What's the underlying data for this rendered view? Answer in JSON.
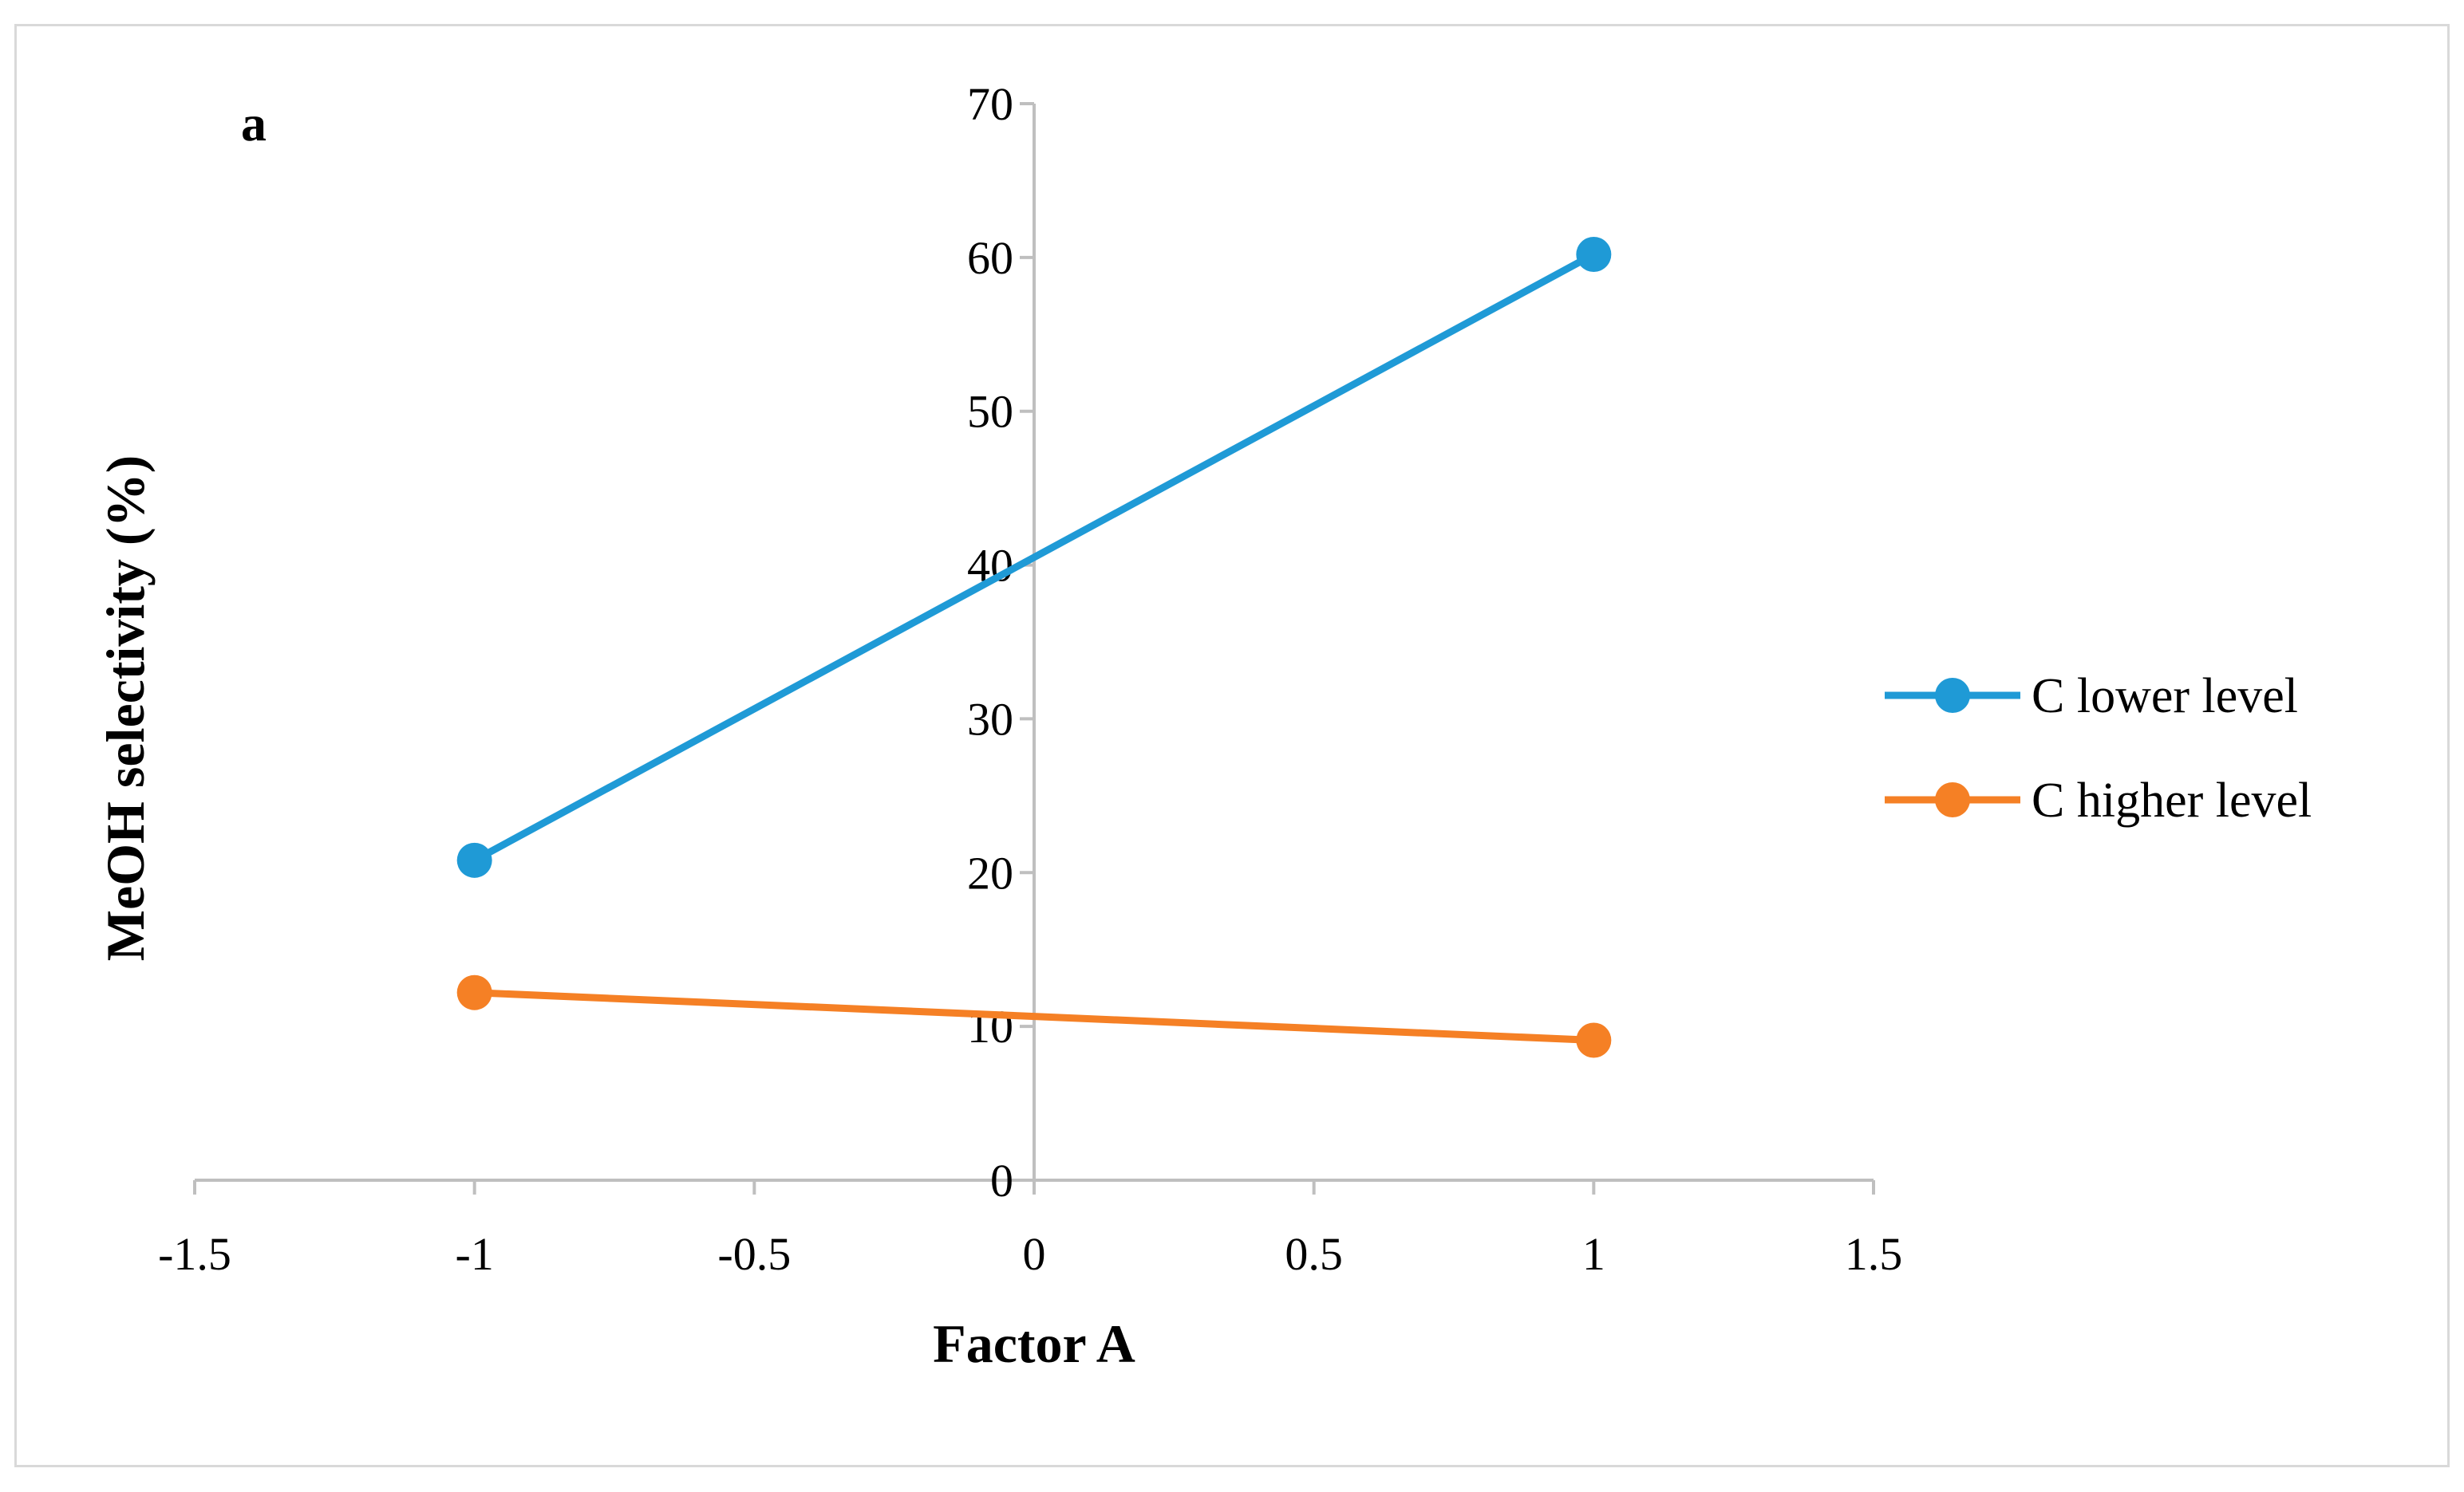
{
  "chart_data": {
    "type": "line",
    "panel_label": "a",
    "xlabel": "Factor A",
    "ylabel": "MeOH selectivity (%)",
    "xlim": [
      -1.5,
      1.5
    ],
    "ylim": [
      0,
      70
    ],
    "x_ticks": [
      -1.5,
      -1,
      -0.5,
      0,
      0.5,
      1,
      1.5
    ],
    "x_tick_labels": [
      "-1.5",
      "-1",
      "-0.5",
      "0",
      "0.5",
      "1",
      "1.5"
    ],
    "y_ticks": [
      0,
      10,
      20,
      30,
      40,
      50,
      60,
      70
    ],
    "y_tick_labels": [
      "0",
      "10",
      "20",
      "30",
      "40",
      "50",
      "60",
      "70"
    ],
    "grid": false,
    "legend_position": "right",
    "series": [
      {
        "name": "C lower level",
        "color": "#1f9ad6",
        "x": [
          -1,
          1
        ],
        "y": [
          20.8,
          60.2
        ]
      },
      {
        "name": "C higher level",
        "color": "#f58025",
        "x": [
          -1,
          1
        ],
        "y": [
          12.2,
          9.1
        ]
      }
    ]
  }
}
